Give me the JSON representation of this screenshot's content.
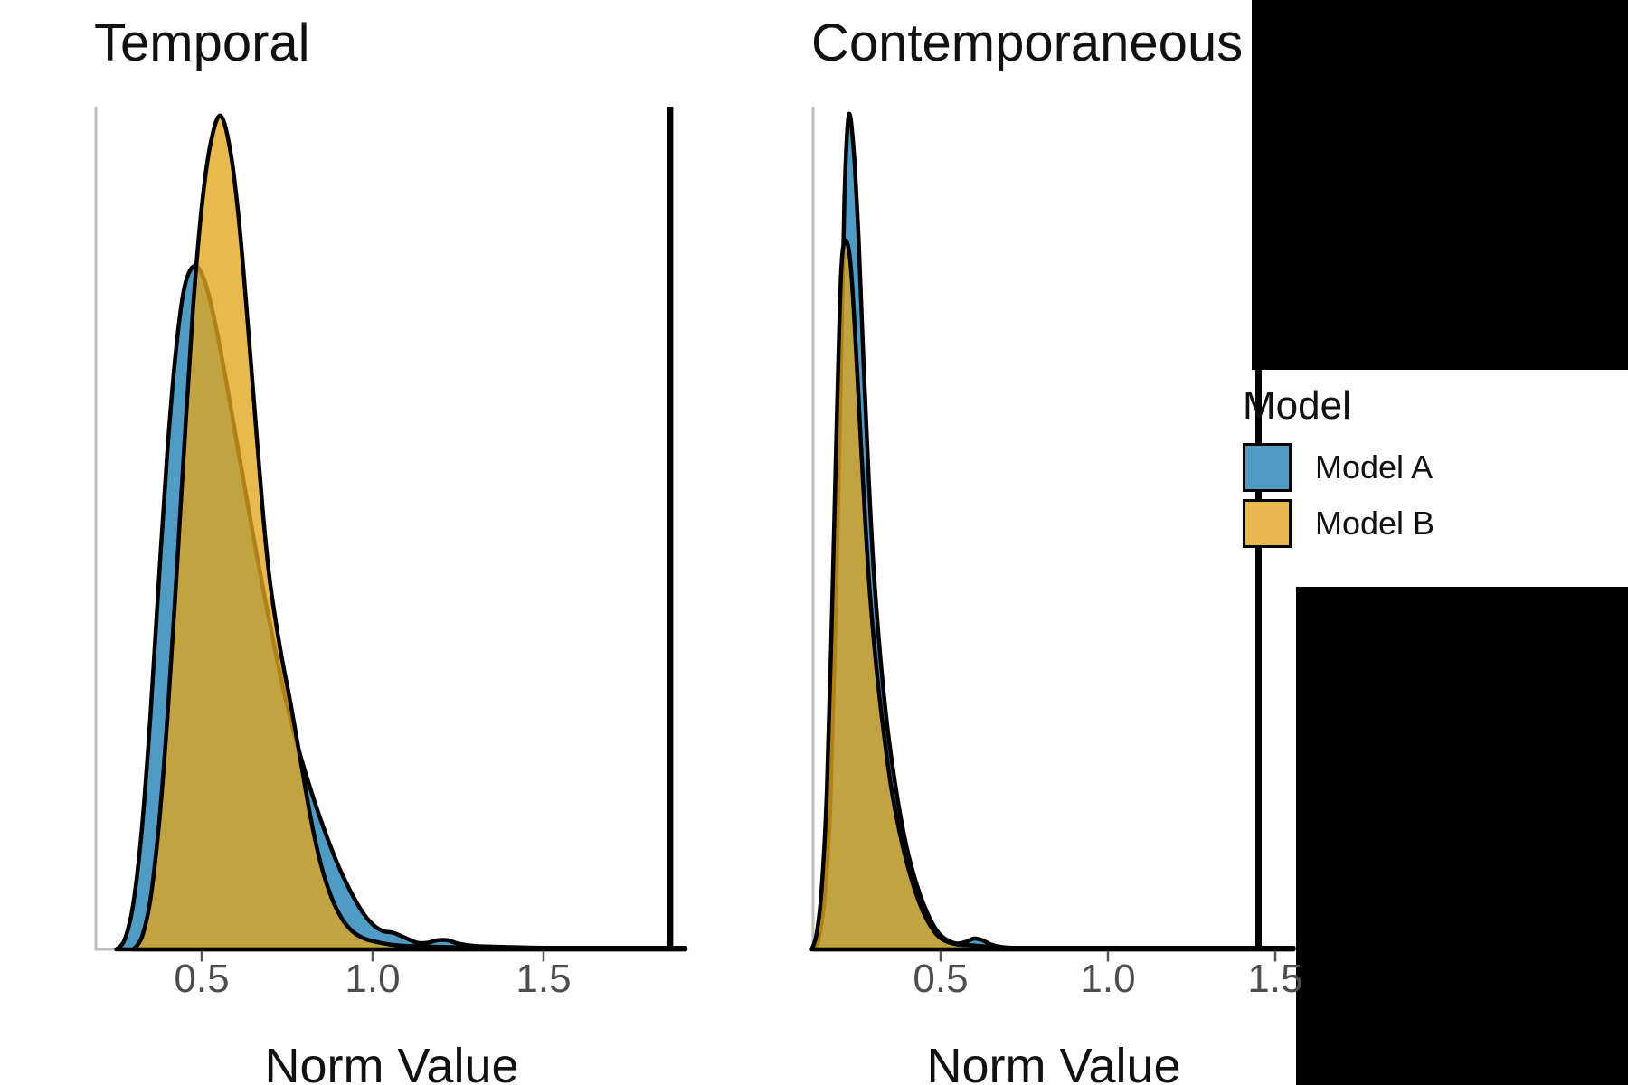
{
  "chart_data": {
    "type": "area",
    "subtype": "overlaid-density-facets",
    "xlabel_shared": "Norm Value",
    "legend": {
      "title": "Model",
      "position": "right",
      "entries": [
        {
          "label": "Model A",
          "color": "#4E9BC4"
        },
        {
          "label": "Model B",
          "color": "#E9B750"
        }
      ]
    },
    "colors": {
      "model_a_fill": "#4E9BC4",
      "model_b_fill_base": "#E1A51E",
      "model_b_fill_alpha": 0.78,
      "curve_outline": "#000000",
      "axis_line": "#bebebe",
      "tick_mark": "#555555",
      "tick_label": "#4d4d4d",
      "vline": "#000000"
    },
    "panels": [
      {
        "title": "Temporal",
        "xlabel": "Norm Value",
        "xticks": [
          0.5,
          1.0,
          1.5
        ],
        "xlim": [
          0.19,
          1.92
        ],
        "vline": 1.87,
        "series": [
          {
            "name": "Model A",
            "points": [
              [
                0.25,
                0
              ],
              [
                0.275,
                0.012
              ],
              [
                0.3,
                0.055
              ],
              [
                0.325,
                0.145
              ],
              [
                0.35,
                0.28
              ],
              [
                0.375,
                0.445
              ],
              [
                0.4,
                0.6
              ],
              [
                0.425,
                0.72
              ],
              [
                0.45,
                0.795
              ],
              [
                0.48,
                0.82
              ],
              [
                0.51,
                0.8
              ],
              [
                0.54,
                0.75
              ],
              [
                0.57,
                0.685
              ],
              [
                0.6,
                0.615
              ],
              [
                0.63,
                0.545
              ],
              [
                0.66,
                0.475
              ],
              [
                0.7,
                0.39
              ],
              [
                0.74,
                0.31
              ],
              [
                0.78,
                0.245
              ],
              [
                0.82,
                0.19
              ],
              [
                0.86,
                0.142
              ],
              [
                0.9,
                0.1
              ],
              [
                0.94,
                0.066
              ],
              [
                0.97,
                0.045
              ],
              [
                1.0,
                0.03
              ],
              [
                1.03,
                0.022
              ],
              [
                1.06,
                0.02
              ],
              [
                1.095,
                0.014
              ],
              [
                1.13,
                0.008
              ],
              [
                1.16,
                0.008
              ],
              [
                1.19,
                0.011
              ],
              [
                1.22,
                0.011
              ],
              [
                1.25,
                0.007
              ],
              [
                1.3,
                0.004
              ],
              [
                1.38,
                0.003
              ],
              [
                1.5,
                0.002
              ],
              [
                1.7,
                0.002
              ],
              [
                1.915,
                0.002
              ]
            ]
          },
          {
            "name": "Model B",
            "points": [
              [
                0.3,
                0
              ],
              [
                0.325,
                0.015
              ],
              [
                0.35,
                0.06
              ],
              [
                0.375,
                0.15
              ],
              [
                0.4,
                0.28
              ],
              [
                0.425,
                0.44
              ],
              [
                0.45,
                0.61
              ],
              [
                0.475,
                0.77
              ],
              [
                0.5,
                0.89
              ],
              [
                0.525,
                0.965
              ],
              [
                0.555,
                1.0
              ],
              [
                0.585,
                0.955
              ],
              [
                0.61,
                0.87
              ],
              [
                0.635,
                0.75
              ],
              [
                0.66,
                0.62
              ],
              [
                0.68,
                0.52
              ],
              [
                0.7,
                0.44
              ],
              [
                0.73,
                0.36
              ],
              [
                0.76,
                0.295
              ],
              [
                0.79,
                0.225
              ],
              [
                0.82,
                0.155
              ],
              [
                0.85,
                0.1
              ],
              [
                0.88,
                0.062
              ],
              [
                0.91,
                0.037
              ],
              [
                0.94,
                0.022
              ],
              [
                0.97,
                0.014
              ],
              [
                1.0,
                0.01
              ],
              [
                1.05,
                0.006
              ],
              [
                1.1,
                0.004
              ],
              [
                1.2,
                0.003
              ],
              [
                1.35,
                0.002
              ],
              [
                1.6,
                0.002
              ],
              [
                1.915,
                0.002
              ]
            ]
          }
        ]
      },
      {
        "title": "Contemporaneous",
        "xlabel": "Norm Value",
        "xticks": [
          0.5,
          1.0,
          1.5
        ],
        "xlim": [
          0.11,
          1.56
        ],
        "vline": 1.45,
        "series": [
          {
            "name": "Model A",
            "points": [
              [
                0.125,
                0
              ],
              [
                0.14,
                0.02
              ],
              [
                0.155,
                0.07
              ],
              [
                0.17,
                0.17
              ],
              [
                0.185,
                0.38
              ],
              [
                0.2,
                0.66
              ],
              [
                0.2125,
                0.9
              ],
              [
                0.225,
                1.0
              ],
              [
                0.24,
                0.96
              ],
              [
                0.255,
                0.85
              ],
              [
                0.27,
                0.7
              ],
              [
                0.285,
                0.565
              ],
              [
                0.3,
                0.455
              ],
              [
                0.32,
                0.35
              ],
              [
                0.34,
                0.27
              ],
              [
                0.36,
                0.21
              ],
              [
                0.38,
                0.16
              ],
              [
                0.4,
                0.12
              ],
              [
                0.42,
                0.089
              ],
              [
                0.44,
                0.064
              ],
              [
                0.46,
                0.044
              ],
              [
                0.48,
                0.028
              ],
              [
                0.5,
                0.017
              ],
              [
                0.525,
                0.01
              ],
              [
                0.55,
                0.007
              ],
              [
                0.575,
                0.009
              ],
              [
                0.6,
                0.013
              ],
              [
                0.625,
                0.011
              ],
              [
                0.65,
                0.006
              ],
              [
                0.68,
                0.003
              ],
              [
                0.72,
                0.002
              ],
              [
                0.8,
                0.002
              ],
              [
                1.0,
                0.002
              ],
              [
                1.2,
                0.002
              ],
              [
                1.555,
                0.002
              ]
            ]
          },
          {
            "name": "Model B",
            "points": [
              [
                0.115,
                0
              ],
              [
                0.13,
                0.02
              ],
              [
                0.145,
                0.075
              ],
              [
                0.16,
                0.19
              ],
              [
                0.175,
                0.4
              ],
              [
                0.19,
                0.64
              ],
              [
                0.2025,
                0.81
              ],
              [
                0.215,
                0.85
              ],
              [
                0.23,
                0.825
              ],
              [
                0.245,
                0.735
              ],
              [
                0.26,
                0.62
              ],
              [
                0.275,
                0.51
              ],
              [
                0.29,
                0.42
              ],
              [
                0.31,
                0.33
              ],
              [
                0.33,
                0.26
              ],
              [
                0.35,
                0.2
              ],
              [
                0.37,
                0.155
              ],
              [
                0.39,
                0.118
              ],
              [
                0.41,
                0.088
              ],
              [
                0.43,
                0.063
              ],
              [
                0.45,
                0.043
              ],
              [
                0.47,
                0.028
              ],
              [
                0.49,
                0.017
              ],
              [
                0.515,
                0.01
              ],
              [
                0.55,
                0.006
              ],
              [
                0.59,
                0.005
              ],
              [
                0.62,
                0.004
              ],
              [
                0.65,
                0.003
              ],
              [
                0.7,
                0.002
              ],
              [
                0.8,
                0.002
              ],
              [
                1.0,
                0.002
              ],
              [
                1.2,
                0.002
              ],
              [
                1.555,
                0.002
              ]
            ]
          }
        ]
      }
    ]
  },
  "redacted_regions": [
    "top-right",
    "bottom-right"
  ]
}
